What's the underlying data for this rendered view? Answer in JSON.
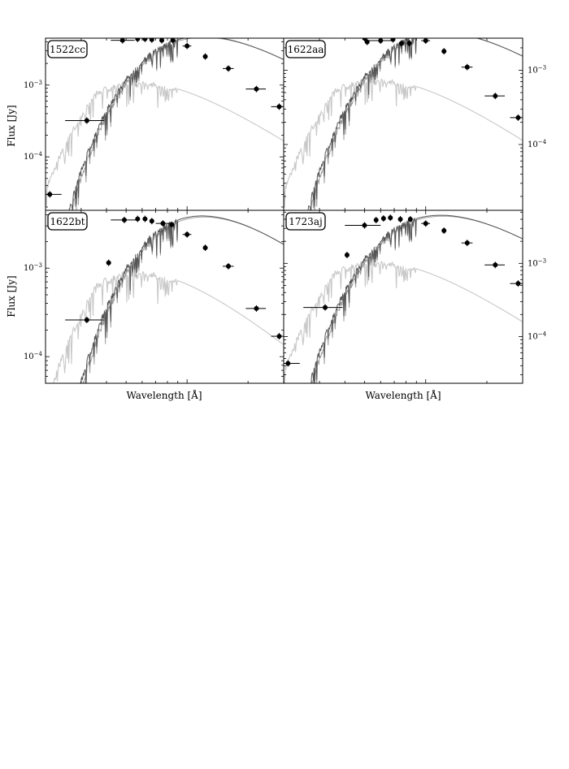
{
  "figure": {
    "ylabel": "Flux [Jy]",
    "xlabel": "Wavelength [Å]"
  },
  "chart_data": [
    {
      "type": "scatter",
      "title": "1522cc",
      "x_scale": "log",
      "y_scale": "log",
      "xlim": [
        2000,
        30000
      ],
      "ylim": [
        1.8e-05,
        0.0045
      ],
      "yticks": [
        {
          "value": 0.001,
          "label": "10−3"
        },
        {
          "value": 0.0001,
          "label": "10−4"
        }
      ],
      "points": [
        {
          "x": 2100,
          "y": 3e-05,
          "xerr_lo": 200,
          "xerr_hi": 300
        },
        {
          "x": 3200,
          "y": 0.00032,
          "xerr_lo": 700,
          "xerr_hi": 700
        },
        {
          "x": 4800,
          "y": 0.0042,
          "xerr_lo": 600,
          "xerr_hi": 700
        },
        {
          "x": 5700,
          "y": 0.0044
        },
        {
          "x": 6200,
          "y": 0.0044
        },
        {
          "x": 6700,
          "y": 0.0043
        },
        {
          "x": 7500,
          "y": 0.0042
        },
        {
          "x": 8500,
          "y": 0.0042
        },
        {
          "x": 10000,
          "y": 0.0035,
          "xerr_lo": 500,
          "xerr_hi": 500
        },
        {
          "x": 12300,
          "y": 0.0025
        },
        {
          "x": 16000,
          "y": 0.0017,
          "xerr_lo": 1000,
          "xerr_hi": 1000
        },
        {
          "x": 22000,
          "y": 0.00088,
          "xerr_lo": 2500,
          "xerr_hi": 2500
        },
        {
          "x": 28500,
          "y": 0.0005,
          "xerr_lo": 2500,
          "xerr_hi": 1500
        }
      ]
    },
    {
      "type": "scatter",
      "title": "1622aa",
      "x_scale": "log",
      "y_scale": "log",
      "xlim": [
        2000,
        30000
      ],
      "ylim": [
        1.3e-05,
        0.0027
      ],
      "yticks": [
        {
          "value": 0.001,
          "label": "10−3"
        },
        {
          "value": 0.0001,
          "label": "10−4"
        }
      ],
      "points": [
        {
          "x": 5000,
          "y": 0.0027,
          "xerr_lo": 1200,
          "xerr_hi": 1200
        },
        {
          "x": 5150,
          "y": 0.0024
        },
        {
          "x": 6000,
          "y": 0.0025,
          "xerr_lo": 800,
          "xerr_hi": 800
        },
        {
          "x": 6300,
          "y": 0.003
        },
        {
          "x": 6900,
          "y": 0.0026
        },
        {
          "x": 7600,
          "y": 0.0023
        },
        {
          "x": 8300,
          "y": 0.0023
        },
        {
          "x": 10000,
          "y": 0.0025,
          "xerr_lo": 500,
          "xerr_hi": 500
        },
        {
          "x": 12300,
          "y": 0.0018
        },
        {
          "x": 16000,
          "y": 0.0011,
          "xerr_lo": 1000,
          "xerr_hi": 1000
        },
        {
          "x": 22000,
          "y": 0.00045,
          "xerr_lo": 2500,
          "xerr_hi": 2500
        },
        {
          "x": 28500,
          "y": 0.00023,
          "xerr_lo": 2500,
          "xerr_hi": 1500
        }
      ]
    },
    {
      "type": "scatter",
      "title": "1622bt",
      "x_scale": "log",
      "y_scale": "log",
      "xlim": [
        2000,
        30000
      ],
      "ylim": [
        5e-05,
        0.0045
      ],
      "yticks": [
        {
          "value": 0.001,
          "label": "10−3"
        },
        {
          "value": 0.0001,
          "label": "10−4"
        }
      ],
      "points": [
        {
          "x": 3200,
          "y": 0.00026,
          "xerr_lo": 700,
          "xerr_hi": 700
        },
        {
          "x": 4100,
          "y": 0.00115
        },
        {
          "x": 4900,
          "y": 0.0035,
          "xerr_lo": 700,
          "xerr_hi": 700
        },
        {
          "x": 5700,
          "y": 0.0036
        },
        {
          "x": 6200,
          "y": 0.0036
        },
        {
          "x": 6700,
          "y": 0.0034
        },
        {
          "x": 7600,
          "y": 0.0032,
          "xerr_lo": 600,
          "xerr_hi": 700
        },
        {
          "x": 8400,
          "y": 0.0031
        },
        {
          "x": 10000,
          "y": 0.0024,
          "xerr_lo": 500,
          "xerr_hi": 500
        },
        {
          "x": 12300,
          "y": 0.0017
        },
        {
          "x": 16000,
          "y": 0.00105,
          "xerr_lo": 1000,
          "xerr_hi": 1000
        },
        {
          "x": 22000,
          "y": 0.00035,
          "xerr_lo": 2500,
          "xerr_hi": 2500
        },
        {
          "x": 28500,
          "y": 0.00017,
          "xerr_lo": 2500,
          "xerr_hi": 1500
        }
      ]
    },
    {
      "type": "scatter",
      "title": "1723aj",
      "x_scale": "log",
      "y_scale": "log",
      "xlim": [
        2000,
        30000
      ],
      "ylim": [
        2.3e-05,
        0.0053
      ],
      "yticks": [
        {
          "value": 0.001,
          "label": "10−3"
        },
        {
          "value": 0.0001,
          "label": "10−4"
        }
      ],
      "points": [
        {
          "x": 2100,
          "y": 4.3e-05,
          "xerr_lo": 200,
          "xerr_hi": 300
        },
        {
          "x": 3200,
          "y": 0.00025,
          "xerr_lo": 700,
          "xerr_hi": 700
        },
        {
          "x": 4100,
          "y": 0.0013
        },
        {
          "x": 5000,
          "y": 0.0033,
          "xerr_lo": 1000,
          "xerr_hi": 1000
        },
        {
          "x": 5700,
          "y": 0.0039
        },
        {
          "x": 6200,
          "y": 0.0041
        },
        {
          "x": 6700,
          "y": 0.0042
        },
        {
          "x": 7500,
          "y": 0.004
        },
        {
          "x": 8400,
          "y": 0.004
        },
        {
          "x": 10000,
          "y": 0.0035,
          "xerr_lo": 500,
          "xerr_hi": 500
        },
        {
          "x": 12300,
          "y": 0.0028
        },
        {
          "x": 16000,
          "y": 0.0019,
          "xerr_lo": 1000,
          "xerr_hi": 1000
        },
        {
          "x": 22000,
          "y": 0.00095,
          "xerr_lo": 2500,
          "xerr_hi": 2500
        },
        {
          "x": 28500,
          "y": 0.00053,
          "xerr_lo": 2500,
          "xerr_hi": 1500
        }
      ]
    }
  ]
}
